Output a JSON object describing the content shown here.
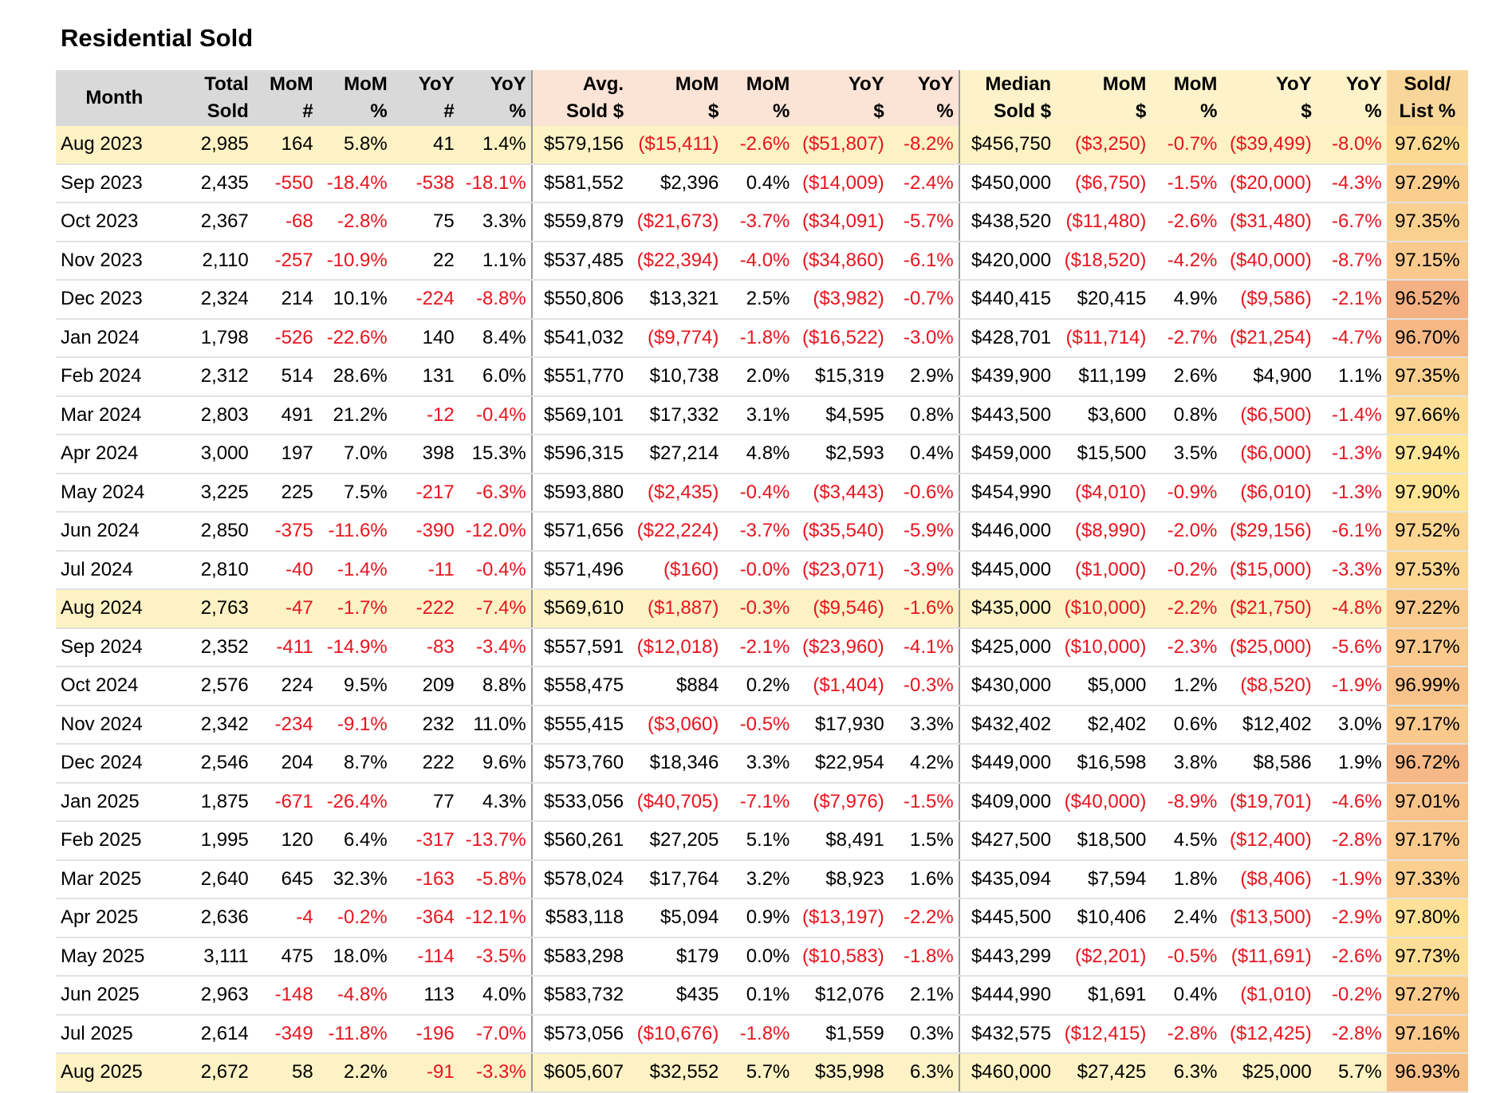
{
  "title": "Residential Sold",
  "headers": [
    {
      "l1": "Month",
      "l2": ""
    },
    {
      "l1": "Total",
      "l2": "Sold"
    },
    {
      "l1": "MoM",
      "l2": "#"
    },
    {
      "l1": "MoM",
      "l2": "%"
    },
    {
      "l1": "YoY",
      "l2": "#"
    },
    {
      "l1": "YoY",
      "l2": "%"
    },
    {
      "l1": "Avg.",
      "l2": "Sold $"
    },
    {
      "l1": "MoM",
      "l2": "$"
    },
    {
      "l1": "MoM",
      "l2": "%"
    },
    {
      "l1": "YoY",
      "l2": "$"
    },
    {
      "l1": "YoY",
      "l2": "%"
    },
    {
      "l1": "Median",
      "l2": "Sold $"
    },
    {
      "l1": "MoM",
      "l2": "$"
    },
    {
      "l1": "MoM",
      "l2": "%"
    },
    {
      "l1": "YoY",
      "l2": "$"
    },
    {
      "l1": "YoY",
      "l2": "%"
    },
    {
      "l1": "Sold/",
      "l2": "List %"
    }
  ],
  "colors": {
    "negative": "#e8141e",
    "header_gray": "#d9d9d9",
    "header_avg": "#fbe3d6",
    "header_median": "#fdf2c9",
    "highlight_row": "#fdf2c4",
    "ratio_scale": [
      "#f4b183",
      "#ffe699"
    ]
  },
  "rows": [
    {
      "month": "Aug 2023",
      "highlight": true,
      "ratio": 97.62,
      "cells": [
        "2,985",
        "164",
        "5.8%",
        "41",
        "1.4%",
        "$579,156",
        "($15,411)",
        "-2.6%",
        "($51,807)",
        "-8.2%",
        "$456,750",
        "($3,250)",
        "-0.7%",
        "($39,499)",
        "-8.0%",
        "97.62%"
      ]
    },
    {
      "month": "Sep 2023",
      "ratio": 97.29,
      "cells": [
        "2,435",
        "-550",
        "-18.4%",
        "-538",
        "-18.1%",
        "$581,552",
        "$2,396",
        "0.4%",
        "($14,009)",
        "-2.4%",
        "$450,000",
        "($6,750)",
        "-1.5%",
        "($20,000)",
        "-4.3%",
        "97.29%"
      ]
    },
    {
      "month": "Oct 2023",
      "ratio": 97.35,
      "cells": [
        "2,367",
        "-68",
        "-2.8%",
        "75",
        "3.3%",
        "$559,879",
        "($21,673)",
        "-3.7%",
        "($34,091)",
        "-5.7%",
        "$438,520",
        "($11,480)",
        "-2.6%",
        "($31,480)",
        "-6.7%",
        "97.35%"
      ]
    },
    {
      "month": "Nov 2023",
      "ratio": 97.15,
      "cells": [
        "2,110",
        "-257",
        "-10.9%",
        "22",
        "1.1%",
        "$537,485",
        "($22,394)",
        "-4.0%",
        "($34,860)",
        "-6.1%",
        "$420,000",
        "($18,520)",
        "-4.2%",
        "($40,000)",
        "-8.7%",
        "97.15%"
      ]
    },
    {
      "month": "Dec 2023",
      "ratio": 96.52,
      "cells": [
        "2,324",
        "214",
        "10.1%",
        "-224",
        "-8.8%",
        "$550,806",
        "$13,321",
        "2.5%",
        "($3,982)",
        "-0.7%",
        "$440,415",
        "$20,415",
        "4.9%",
        "($9,586)",
        "-2.1%",
        "96.52%"
      ]
    },
    {
      "month": "Jan 2024",
      "ratio": 96.7,
      "cells": [
        "1,798",
        "-526",
        "-22.6%",
        "140",
        "8.4%",
        "$541,032",
        "($9,774)",
        "-1.8%",
        "($16,522)",
        "-3.0%",
        "$428,701",
        "($11,714)",
        "-2.7%",
        "($21,254)",
        "-4.7%",
        "96.70%"
      ]
    },
    {
      "month": "Feb 2024",
      "ratio": 97.35,
      "cells": [
        "2,312",
        "514",
        "28.6%",
        "131",
        "6.0%",
        "$551,770",
        "$10,738",
        "2.0%",
        "$15,319",
        "2.9%",
        "$439,900",
        "$11,199",
        "2.6%",
        "$4,900",
        "1.1%",
        "97.35%"
      ]
    },
    {
      "month": "Mar 2024",
      "ratio": 97.66,
      "cells": [
        "2,803",
        "491",
        "21.2%",
        "-12",
        "-0.4%",
        "$569,101",
        "$17,332",
        "3.1%",
        "$4,595",
        "0.8%",
        "$443,500",
        "$3,600",
        "0.8%",
        "($6,500)",
        "-1.4%",
        "97.66%"
      ]
    },
    {
      "month": "Apr 2024",
      "ratio": 97.94,
      "cells": [
        "3,000",
        "197",
        "7.0%",
        "398",
        "15.3%",
        "$596,315",
        "$27,214",
        "4.8%",
        "$2,593",
        "0.4%",
        "$459,000",
        "$15,500",
        "3.5%",
        "($6,000)",
        "-1.3%",
        "97.94%"
      ]
    },
    {
      "month": "May 2024",
      "ratio": 97.9,
      "cells": [
        "3,225",
        "225",
        "7.5%",
        "-217",
        "-6.3%",
        "$593,880",
        "($2,435)",
        "-0.4%",
        "($3,443)",
        "-0.6%",
        "$454,990",
        "($4,010)",
        "-0.9%",
        "($6,010)",
        "-1.3%",
        "97.90%"
      ]
    },
    {
      "month": "Jun 2024",
      "ratio": 97.52,
      "cells": [
        "2,850",
        "-375",
        "-11.6%",
        "-390",
        "-12.0%",
        "$571,656",
        "($22,224)",
        "-3.7%",
        "($35,540)",
        "-5.9%",
        "$446,000",
        "($8,990)",
        "-2.0%",
        "($29,156)",
        "-6.1%",
        "97.52%"
      ]
    },
    {
      "month": "Jul 2024",
      "ratio": 97.53,
      "cells": [
        "2,810",
        "-40",
        "-1.4%",
        "-11",
        "-0.4%",
        "$571,496",
        "($160)",
        "-0.0%",
        "($23,071)",
        "-3.9%",
        "$445,000",
        "($1,000)",
        "-0.2%",
        "($15,000)",
        "-3.3%",
        "97.53%"
      ]
    },
    {
      "month": "Aug 2024",
      "highlight": true,
      "ratio": 97.22,
      "cells": [
        "2,763",
        "-47",
        "-1.7%",
        "-222",
        "-7.4%",
        "$569,610",
        "($1,887)",
        "-0.3%",
        "($9,546)",
        "-1.6%",
        "$435,000",
        "($10,000)",
        "-2.2%",
        "($21,750)",
        "-4.8%",
        "97.22%"
      ]
    },
    {
      "month": "Sep 2024",
      "ratio": 97.17,
      "cells": [
        "2,352",
        "-411",
        "-14.9%",
        "-83",
        "-3.4%",
        "$557,591",
        "($12,018)",
        "-2.1%",
        "($23,960)",
        "-4.1%",
        "$425,000",
        "($10,000)",
        "-2.3%",
        "($25,000)",
        "-5.6%",
        "97.17%"
      ]
    },
    {
      "month": "Oct 2024",
      "ratio": 96.99,
      "cells": [
        "2,576",
        "224",
        "9.5%",
        "209",
        "8.8%",
        "$558,475",
        "$884",
        "0.2%",
        "($1,404)",
        "-0.3%",
        "$430,000",
        "$5,000",
        "1.2%",
        "($8,520)",
        "-1.9%",
        "96.99%"
      ]
    },
    {
      "month": "Nov 2024",
      "ratio": 97.17,
      "cells": [
        "2,342",
        "-234",
        "-9.1%",
        "232",
        "11.0%",
        "$555,415",
        "($3,060)",
        "-0.5%",
        "$17,930",
        "3.3%",
        "$432,402",
        "$2,402",
        "0.6%",
        "$12,402",
        "3.0%",
        "97.17%"
      ]
    },
    {
      "month": "Dec 2024",
      "ratio": 96.72,
      "cells": [
        "2,546",
        "204",
        "8.7%",
        "222",
        "9.6%",
        "$573,760",
        "$18,346",
        "3.3%",
        "$22,954",
        "4.2%",
        "$449,000",
        "$16,598",
        "3.8%",
        "$8,586",
        "1.9%",
        "96.72%"
      ]
    },
    {
      "month": "Jan 2025",
      "ratio": 97.01,
      "cells": [
        "1,875",
        "-671",
        "-26.4%",
        "77",
        "4.3%",
        "$533,056",
        "($40,705)",
        "-7.1%",
        "($7,976)",
        "-1.5%",
        "$409,000",
        "($40,000)",
        "-8.9%",
        "($19,701)",
        "-4.6%",
        "97.01%"
      ]
    },
    {
      "month": "Feb 2025",
      "ratio": 97.17,
      "cells": [
        "1,995",
        "120",
        "6.4%",
        "-317",
        "-13.7%",
        "$560,261",
        "$27,205",
        "5.1%",
        "$8,491",
        "1.5%",
        "$427,500",
        "$18,500",
        "4.5%",
        "($12,400)",
        "-2.8%",
        "97.17%"
      ]
    },
    {
      "month": "Mar 2025",
      "ratio": 97.33,
      "cells": [
        "2,640",
        "645",
        "32.3%",
        "-163",
        "-5.8%",
        "$578,024",
        "$17,764",
        "3.2%",
        "$8,923",
        "1.6%",
        "$435,094",
        "$7,594",
        "1.8%",
        "($8,406)",
        "-1.9%",
        "97.33%"
      ]
    },
    {
      "month": "Apr 2025",
      "ratio": 97.8,
      "cells": [
        "2,636",
        "-4",
        "-0.2%",
        "-364",
        "-12.1%",
        "$583,118",
        "$5,094",
        "0.9%",
        "($13,197)",
        "-2.2%",
        "$445,500",
        "$10,406",
        "2.4%",
        "($13,500)",
        "-2.9%",
        "97.80%"
      ]
    },
    {
      "month": "May 2025",
      "ratio": 97.73,
      "cells": [
        "3,111",
        "475",
        "18.0%",
        "-114",
        "-3.5%",
        "$583,298",
        "$179",
        "0.0%",
        "($10,583)",
        "-1.8%",
        "$443,299",
        "($2,201)",
        "-0.5%",
        "($11,691)",
        "-2.6%",
        "97.73%"
      ]
    },
    {
      "month": "Jun 2025",
      "ratio": 97.27,
      "cells": [
        "2,963",
        "-148",
        "-4.8%",
        "113",
        "4.0%",
        "$583,732",
        "$435",
        "0.1%",
        "$12,076",
        "2.1%",
        "$444,990",
        "$1,691",
        "0.4%",
        "($1,010)",
        "-0.2%",
        "97.27%"
      ]
    },
    {
      "month": "Jul 2025",
      "ratio": 97.16,
      "cells": [
        "2,614",
        "-349",
        "-11.8%",
        "-196",
        "-7.0%",
        "$573,056",
        "($10,676)",
        "-1.8%",
        "$1,559",
        "0.3%",
        "$432,575",
        "($12,415)",
        "-2.8%",
        "($12,425)",
        "-2.8%",
        "97.16%"
      ]
    },
    {
      "month": "Aug 2025",
      "highlight": true,
      "ratio": 96.93,
      "cells": [
        "2,672",
        "58",
        "2.2%",
        "-91",
        "-3.3%",
        "$605,607",
        "$32,552",
        "5.7%",
        "$35,998",
        "6.3%",
        "$460,000",
        "$27,425",
        "6.3%",
        "$25,000",
        "5.7%",
        "96.93%"
      ]
    }
  ]
}
